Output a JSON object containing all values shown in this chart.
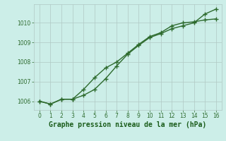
{
  "line1_x": [
    0,
    1,
    2,
    3,
    4,
    5,
    6,
    7,
    8,
    9,
    10,
    11,
    12,
    13,
    14,
    15,
    16
  ],
  "line1_y": [
    1006.0,
    1005.85,
    1006.1,
    1006.1,
    1006.6,
    1007.2,
    1007.7,
    1008.0,
    1008.45,
    1008.9,
    1009.3,
    1009.5,
    1009.85,
    1010.0,
    1010.05,
    1010.15,
    1010.2
  ],
  "line2_x": [
    0,
    1,
    2,
    3,
    4,
    5,
    6,
    7,
    8,
    9,
    10,
    11,
    12,
    13,
    14,
    15,
    16
  ],
  "line2_y": [
    1006.0,
    1005.85,
    1006.1,
    1006.1,
    1006.3,
    1006.6,
    1007.15,
    1007.8,
    1008.4,
    1008.85,
    1009.25,
    1009.45,
    1009.7,
    1009.85,
    1010.0,
    1010.45,
    1010.7
  ],
  "line_color": "#2d6a2d",
  "bg_color": "#cceee8",
  "grid_color": "#b0c8c4",
  "xlabel": "Graphe pression niveau de la mer (hPa)",
  "xlabel_color": "#1a5c1a",
  "xlabel_fontsize": 7,
  "ylabel_ticks": [
    1006,
    1007,
    1008,
    1009,
    1010
  ],
  "xlim": [
    -0.5,
    16.5
  ],
  "ylim": [
    1005.55,
    1010.95
  ],
  "xticks": [
    0,
    1,
    2,
    3,
    4,
    5,
    6,
    7,
    8,
    9,
    10,
    11,
    12,
    13,
    14,
    15,
    16
  ],
  "marker": "+",
  "marker_size": 4,
  "line_width": 1.0
}
